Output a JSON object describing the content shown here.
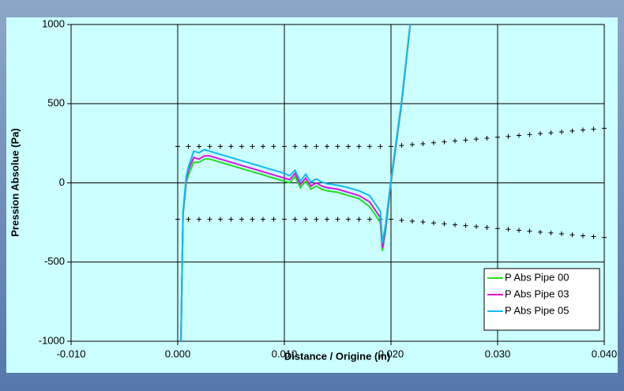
{
  "chart_data": {
    "type": "line",
    "x_label": "Distance / Origine (m)",
    "y_label": "Pression Absolue (Pa)",
    "xlim": [
      -0.01,
      0.04
    ],
    "ylim": [
      -1000,
      1000
    ],
    "xticks": [
      {
        "value": -0.01,
        "label": "-0.010"
      },
      {
        "value": 0,
        "label": "0.000"
      },
      {
        "value": 0.01,
        "label": "0.010"
      },
      {
        "value": 0.02,
        "label": "0.020"
      },
      {
        "value": 0.03,
        "label": "0.030"
      },
      {
        "value": 0.04,
        "label": "0.040"
      }
    ],
    "yticks": [
      -1000,
      -500,
      0,
      500,
      1000
    ],
    "grid": true,
    "legend": "bottom-right",
    "x": [
      0.0003,
      0.0005,
      0.0008,
      0.001,
      0.0015,
      0.002,
      0.0025,
      0.003,
      0.0035,
      0.004,
      0.005,
      0.006,
      0.007,
      0.008,
      0.009,
      0.01,
      0.0105,
      0.011,
      0.0115,
      0.012,
      0.0125,
      0.013,
      0.0135,
      0.014,
      0.015,
      0.016,
      0.017,
      0.018,
      0.0185,
      0.019,
      0.0192,
      0.0195,
      0.02,
      0.021,
      0.0218
    ],
    "series": [
      {
        "name": "P Abs Pipe 00",
        "color": "#22dd22",
        "values": [
          -1000,
          -200,
          0,
          50,
          130,
          130,
          150,
          150,
          140,
          130,
          110,
          90,
          70,
          50,
          30,
          10,
          0,
          40,
          -30,
          10,
          -40,
          -20,
          -40,
          -50,
          -60,
          -80,
          -100,
          -150,
          -200,
          -250,
          -430,
          -300,
          0,
          500,
          1000
        ]
      },
      {
        "name": "P Abs Pipe 03",
        "color": "#dd11dd",
        "values": [
          -1000,
          -190,
          20,
          80,
          160,
          150,
          170,
          170,
          160,
          150,
          130,
          110,
          90,
          70,
          50,
          30,
          20,
          60,
          -10,
          30,
          -20,
          0,
          -20,
          -30,
          -40,
          -60,
          -80,
          -120,
          -170,
          -220,
          -410,
          -280,
          10,
          510,
          1000
        ]
      },
      {
        "name": "P Abs Pipe 05",
        "color": "#11bbee",
        "values": [
          -1000,
          -180,
          40,
          100,
          200,
          190,
          210,
          200,
          190,
          180,
          160,
          140,
          120,
          100,
          80,
          60,
          45,
          80,
          10,
          55,
          5,
          25,
          5,
          -5,
          -15,
          -30,
          -50,
          -80,
          -130,
          -180,
          -380,
          -260,
          20,
          520,
          1000
        ]
      }
    ],
    "envelope": {
      "color": "#000000",
      "x": [
        0,
        0.001,
        0.002,
        0.003,
        0.004,
        0.005,
        0.006,
        0.007,
        0.008,
        0.009,
        0.01,
        0.011,
        0.012,
        0.013,
        0.014,
        0.015,
        0.016,
        0.017,
        0.018,
        0.019,
        0.02,
        0.021,
        0.022,
        0.023,
        0.024,
        0.025,
        0.026,
        0.027,
        0.028,
        0.029,
        0.03,
        0.031,
        0.032,
        0.033,
        0.034,
        0.035,
        0.036,
        0.037,
        0.038,
        0.039,
        0.04
      ],
      "upper": [
        230,
        230,
        230,
        230,
        230,
        230,
        230,
        230,
        230,
        230,
        230,
        230,
        230,
        230,
        230,
        230,
        230,
        230,
        230,
        230,
        230,
        236,
        242,
        247,
        253,
        259,
        265,
        270,
        276,
        282,
        288,
        293,
        299,
        305,
        311,
        316,
        322,
        328,
        334,
        339,
        345
      ],
      "lower": [
        -230,
        -230,
        -230,
        -230,
        -230,
        -230,
        -230,
        -230,
        -230,
        -230,
        -230,
        -230,
        -230,
        -230,
        -230,
        -230,
        -230,
        -230,
        -230,
        -230,
        -230,
        -236,
        -242,
        -247,
        -253,
        -259,
        -265,
        -270,
        -276,
        -282,
        -288,
        -293,
        -299,
        -305,
        -311,
        -316,
        -322,
        -328,
        -334,
        -339,
        -345
      ]
    }
  }
}
